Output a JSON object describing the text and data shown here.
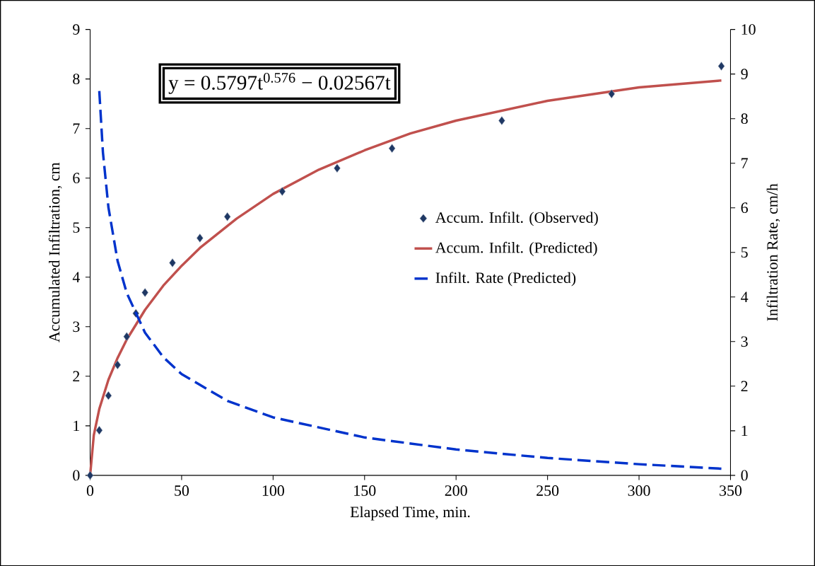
{
  "chart_data": {
    "type": "line",
    "xlabel": "Elapsed Time, min.",
    "ylabel": "Accumulated Infiltration, cm",
    "y2label": "Infiltration Rate, cm/h",
    "xlim": [
      0,
      350
    ],
    "xticks": [
      0,
      50,
      100,
      150,
      200,
      250,
      300,
      350
    ],
    "ylim": [
      0,
      9
    ],
    "yticks": [
      0,
      1,
      2,
      3,
      4,
      5,
      6,
      7,
      8,
      9
    ],
    "y2lim": [
      0,
      10
    ],
    "y2ticks": [
      0,
      1,
      2,
      3,
      4,
      5,
      6,
      7,
      8,
      9,
      10
    ],
    "legend": "right",
    "grid": false,
    "annotations": [
      "y = 0.5797t$^{0.576}$ − 0.02567t"
    ],
    "series": [
      {
        "name": "Accum. Infilt. (Observed)",
        "type": "scatter",
        "marker": "diamond",
        "color": "#1f3864",
        "x": [
          0,
          5,
          10,
          15,
          20,
          25,
          30,
          45,
          60,
          75,
          105,
          135,
          165,
          225,
          285,
          345
        ],
        "values": [
          0,
          0.91,
          1.61,
          2.23,
          2.8,
          3.27,
          3.69,
          4.29,
          4.79,
          5.22,
          5.73,
          6.2,
          6.6,
          7.16,
          7.7,
          8.26
        ]
      },
      {
        "name": "Accum. Infilt. (Predicted)",
        "type": "line",
        "line_style": "solid",
        "color": "#c0504d",
        "x": [
          0,
          2,
          5,
          10,
          15,
          20,
          30,
          40,
          50,
          60,
          80,
          100,
          125,
          150,
          175,
          200,
          250,
          300,
          345
        ],
        "values": [
          0,
          0.81,
          1.34,
          1.93,
          2.37,
          2.74,
          3.34,
          3.83,
          4.23,
          4.59,
          5.18,
          5.68,
          6.17,
          6.56,
          6.9,
          7.16,
          7.56,
          7.83,
          7.97
        ]
      },
      {
        "name": "Infilt. Rate (Predicted)",
        "type": "line",
        "line_style": "dashed",
        "axis": "y2",
        "color": "#0033cc",
        "x": [
          5,
          7,
          10,
          15,
          20,
          30,
          40,
          50,
          75,
          100,
          150,
          200,
          250,
          300,
          345
        ],
        "values": [
          8.62,
          7.24,
          6.01,
          4.81,
          4.09,
          3.2,
          2.65,
          2.27,
          1.67,
          1.3,
          0.85,
          0.58,
          0.39,
          0.25,
          0.15
        ]
      }
    ]
  }
}
